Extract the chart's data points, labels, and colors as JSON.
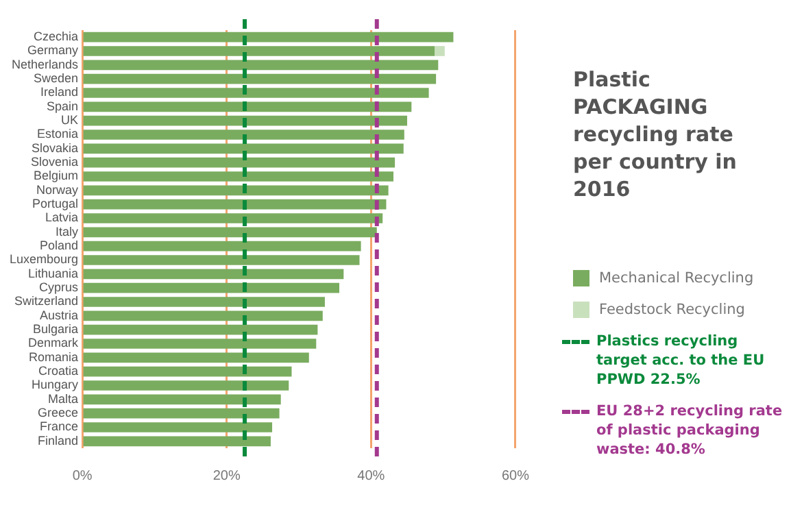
{
  "chart_data": {
    "type": "bar",
    "orientation": "horizontal",
    "stacked": true,
    "title": "Plastic PACKAGING recycling rate per country in 2016",
    "categories": [
      "Czechia",
      "Germany",
      "Netherlands",
      "Sweden",
      "Ireland",
      "Spain",
      "UK",
      "Estonia",
      "Slovakia",
      "Slovenia",
      "Belgium",
      "Norway",
      "Portugal",
      "Latvia",
      "Italy",
      "Poland",
      "Luxembourg",
      "Lithuania",
      "Cyprus",
      "Switzerland",
      "Austria",
      "Bulgaria",
      "Denmark",
      "Romania",
      "Croatia",
      "Hungary",
      "Malta",
      "Greece",
      "France",
      "Finland"
    ],
    "series": [
      {
        "name": "Mechanical Recycling",
        "color": "#7aac5f",
        "values": [
          51.4,
          48.8,
          49.3,
          49.0,
          48.0,
          45.6,
          45.0,
          44.6,
          44.5,
          43.3,
          43.1,
          42.4,
          42.1,
          41.6,
          40.8,
          38.6,
          38.4,
          36.2,
          35.6,
          33.6,
          33.3,
          32.6,
          32.4,
          31.4,
          29.0,
          28.6,
          27.5,
          27.3,
          26.3,
          26.1
        ]
      },
      {
        "name": "Feedstock Recycling",
        "color": "#c9e0bd",
        "values": [
          null,
          1.4,
          null,
          null,
          null,
          null,
          null,
          null,
          null,
          null,
          null,
          null,
          null,
          null,
          null,
          null,
          null,
          null,
          null,
          null,
          null,
          null,
          null,
          null,
          null,
          null,
          null,
          null,
          null,
          null
        ]
      }
    ],
    "xlim": [
      0,
      60
    ],
    "xticks": [
      {
        "value": 0,
        "label": "0%"
      },
      {
        "value": 20,
        "label": "20%"
      },
      {
        "value": 40,
        "label": "40%"
      },
      {
        "value": 60,
        "label": "60%"
      }
    ],
    "grid": "x",
    "legend": "right",
    "ref_lines": [
      {
        "axis": "x",
        "value": 22.5,
        "label": "Plastics recycling target acc. to the  EU PPWD 22.5%",
        "color": "#0b8a3c",
        "line_style": "dashed"
      },
      {
        "axis": "x",
        "value": 40.8,
        "label": "EU 28+2  recycling rate of plastic packaging waste: 40.8%",
        "color": "#a3398f",
        "line_style": "dashed"
      }
    ]
  }
}
